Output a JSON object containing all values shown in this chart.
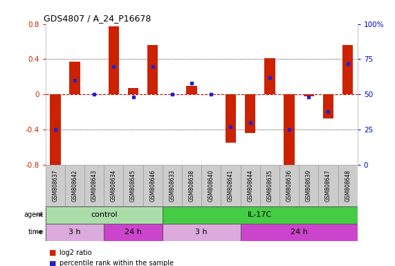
{
  "title": "GDS4807 / A_24_P16678",
  "samples": [
    "GSM808637",
    "GSM808642",
    "GSM808643",
    "GSM808634",
    "GSM808645",
    "GSM808646",
    "GSM808633",
    "GSM808638",
    "GSM808640",
    "GSM808641",
    "GSM808644",
    "GSM808635",
    "GSM808636",
    "GSM808639",
    "GSM808647",
    "GSM808648"
  ],
  "log2_ratio": [
    -0.82,
    0.37,
    0.0,
    0.77,
    0.07,
    0.56,
    0.0,
    0.1,
    0.0,
    -0.55,
    -0.44,
    0.41,
    -0.81,
    -0.02,
    -0.27,
    0.56
  ],
  "percentile": [
    25,
    60,
    50,
    70,
    48,
    70,
    50,
    58,
    50,
    27,
    30,
    62,
    25,
    48,
    38,
    72
  ],
  "ylim": [
    -0.8,
    0.8
  ],
  "y2lim": [
    0,
    100
  ],
  "yticks": [
    -0.8,
    -0.4,
    0.0,
    0.4,
    0.8
  ],
  "ytick_labels": [
    "-0.8",
    "-0.4",
    "0",
    "0.4",
    "0.8"
  ],
  "y2ticks": [
    0,
    25,
    50,
    75,
    100
  ],
  "y2ticklabels": [
    "0",
    "25",
    "50",
    "75",
    "100%"
  ],
  "bar_color": "#cc2200",
  "dot_color": "#2222cc",
  "zero_line_color": "#cc0000",
  "agent_groups": [
    {
      "label": "control",
      "start": 0,
      "end": 6,
      "color": "#aaddaa"
    },
    {
      "label": "IL-17C",
      "start": 6,
      "end": 16,
      "color": "#44cc44"
    }
  ],
  "time_groups": [
    {
      "label": "3 h",
      "start": 0,
      "end": 3,
      "color": "#ddaadd"
    },
    {
      "label": "24 h",
      "start": 3,
      "end": 6,
      "color": "#cc44cc"
    },
    {
      "label": "3 h",
      "start": 6,
      "end": 10,
      "color": "#ddaadd"
    },
    {
      "label": "24 h",
      "start": 10,
      "end": 16,
      "color": "#cc44cc"
    }
  ],
  "legend_items": [
    {
      "label": "log2 ratio",
      "color": "#cc2200"
    },
    {
      "label": "percentile rank within the sample",
      "color": "#2222cc"
    }
  ],
  "bg_color": "#ffffff",
  "tick_label_color_left": "#cc2200",
  "tick_label_color_right": "#0000cc",
  "plot_bg": "#ffffff",
  "tick_box_color": "#cccccc"
}
